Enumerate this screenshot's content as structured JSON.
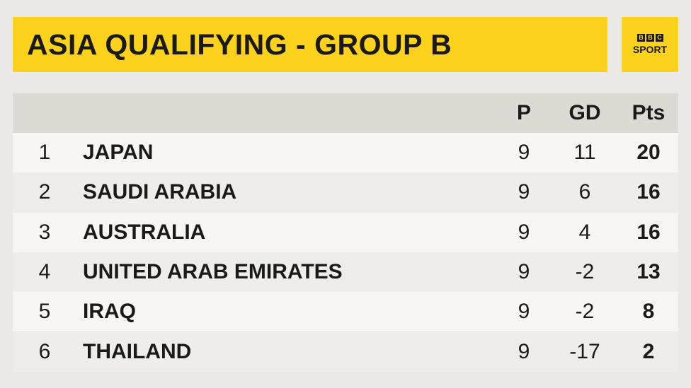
{
  "header": {
    "title": "ASIA QUALIFYING - GROUP B",
    "logo": {
      "letters": [
        "B",
        "B",
        "C"
      ],
      "sport": "SPORT"
    }
  },
  "table": {
    "columns": [
      "P",
      "GD",
      "Pts"
    ],
    "rows": [
      [
        1,
        "JAPAN",
        9,
        11,
        20
      ],
      [
        2,
        "SAUDI ARABIA",
        9,
        6,
        16
      ],
      [
        3,
        "AUSTRALIA",
        9,
        4,
        16
      ],
      [
        4,
        "UNITED ARAB EMIRATES",
        9,
        -2,
        13
      ],
      [
        5,
        "IRAQ",
        9,
        -2,
        8
      ],
      [
        6,
        "THAILAND",
        9,
        -17,
        2
      ]
    ]
  }
}
